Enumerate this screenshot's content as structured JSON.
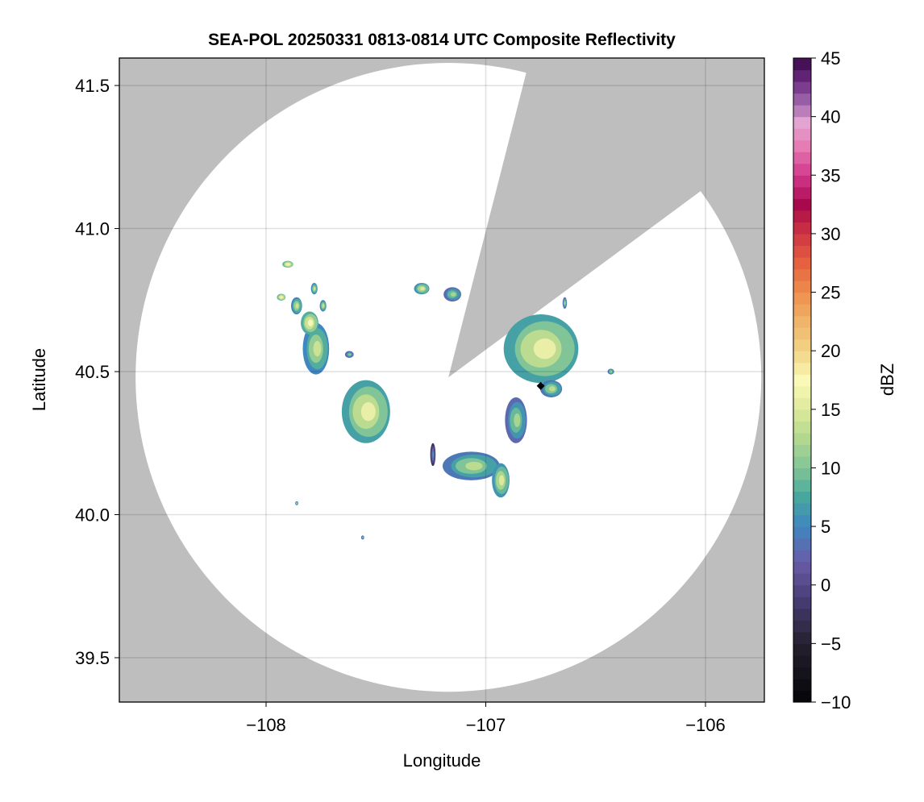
{
  "chart_data": {
    "type": "heatmap",
    "title": "SEA-POL 20250331 0813-0814 UTC Composite Reflectivity",
    "xlabel": "Longitude",
    "ylabel": "Latitude",
    "xlim": [
      -108.668,
      -105.732
    ],
    "ylim": [
      39.345,
      41.596
    ],
    "xticks": [
      -108,
      -107,
      -106
    ],
    "xtick_labels": [
      "−108",
      "−107",
      "−106"
    ],
    "yticks": [
      39.5,
      40.0,
      40.5,
      41.0,
      41.5
    ],
    "ytick_labels": [
      "39.5",
      "40.0",
      "40.5",
      "41.0",
      "41.5"
    ],
    "grid": true,
    "background_color": "#bebebe",
    "radar": {
      "center": [
        -107.17,
        40.48
      ],
      "range_deg_lon": 1.424,
      "range_deg_lat": 1.099,
      "blocked_sector_azimuth_deg": [
        14.4,
        53.7
      ]
    },
    "marker": {
      "lon": -106.75,
      "lat": 40.45,
      "shape": "diamond",
      "color": "#000000"
    },
    "colorbar": {
      "label": "dBZ",
      "range": [
        -10,
        45
      ],
      "ticks": [
        -10,
        -5,
        0,
        5,
        10,
        15,
        20,
        25,
        30,
        35,
        40,
        45
      ],
      "tick_labels": [
        "−10",
        "−5",
        "0",
        "5",
        "10",
        "15",
        "20",
        "25",
        "30",
        "35",
        "40",
        "45"
      ],
      "stops": [
        [
          -10,
          "#050508"
        ],
        [
          -5,
          "#25202f"
        ],
        [
          -1,
          "#4a3f78"
        ],
        [
          2,
          "#6a5aa8"
        ],
        [
          5,
          "#3f87c0"
        ],
        [
          7.5,
          "#47a79e"
        ],
        [
          10,
          "#80c497"
        ],
        [
          12.5,
          "#b1d88e"
        ],
        [
          15,
          "#dde99a"
        ],
        [
          17.5,
          "#fbf9b8"
        ],
        [
          20,
          "#f1d585"
        ],
        [
          22.5,
          "#f0b46a"
        ],
        [
          25,
          "#ed8e4c"
        ],
        [
          27.5,
          "#e5613f"
        ],
        [
          30,
          "#cf3543"
        ],
        [
          32.5,
          "#a8084c"
        ],
        [
          35,
          "#d2388c"
        ],
        [
          37.5,
          "#e57cb3"
        ],
        [
          39.5,
          "#e3a4d2"
        ],
        [
          41,
          "#a56db0"
        ],
        [
          43,
          "#6e2d82"
        ],
        [
          45,
          "#3a0848"
        ]
      ]
    },
    "echoes": [
      {
        "lon": -107.54,
        "lat": 40.36,
        "rx": 0.11,
        "ry": 0.11,
        "dbz": 13
      },
      {
        "lon": -107.77,
        "lat": 40.58,
        "rx": 0.06,
        "ry": 0.09,
        "dbz": 11
      },
      {
        "lon": -107.8,
        "lat": 40.67,
        "rx": 0.04,
        "ry": 0.04,
        "dbz": 14
      },
      {
        "lon": -107.9,
        "lat": 40.875,
        "rx": 0.025,
        "ry": 0.012,
        "dbz": 15
      },
      {
        "lon": -107.93,
        "lat": 40.76,
        "rx": 0.02,
        "ry": 0.012,
        "dbz": 15
      },
      {
        "lon": -107.86,
        "lat": 40.73,
        "rx": 0.025,
        "ry": 0.03,
        "dbz": 11
      },
      {
        "lon": -107.78,
        "lat": 40.79,
        "rx": 0.015,
        "ry": 0.02,
        "dbz": 11
      },
      {
        "lon": -107.74,
        "lat": 40.73,
        "rx": 0.015,
        "ry": 0.02,
        "dbz": 11
      },
      {
        "lon": -107.29,
        "lat": 40.79,
        "rx": 0.035,
        "ry": 0.02,
        "dbz": 12
      },
      {
        "lon": -107.15,
        "lat": 40.77,
        "rx": 0.04,
        "ry": 0.025,
        "dbz": 9
      },
      {
        "lon": -106.74,
        "lat": 40.58,
        "rx": 0.17,
        "ry": 0.12,
        "dbz": 13
      },
      {
        "lon": -106.7,
        "lat": 40.44,
        "rx": 0.05,
        "ry": 0.03,
        "dbz": 10
      },
      {
        "lon": -106.86,
        "lat": 40.33,
        "rx": 0.05,
        "ry": 0.08,
        "dbz": 9
      },
      {
        "lon": -107.06,
        "lat": 40.17,
        "rx": 0.13,
        "ry": 0.05,
        "dbz": 10
      },
      {
        "lon": -106.93,
        "lat": 40.12,
        "rx": 0.04,
        "ry": 0.06,
        "dbz": 12
      },
      {
        "lon": -107.24,
        "lat": 40.21,
        "rx": 0.012,
        "ry": 0.04,
        "dbz": 3
      },
      {
        "lon": -107.62,
        "lat": 40.56,
        "rx": 0.02,
        "ry": 0.012,
        "dbz": 8
      },
      {
        "lon": -106.43,
        "lat": 40.5,
        "rx": 0.015,
        "ry": 0.01,
        "dbz": 10
      },
      {
        "lon": -106.64,
        "lat": 40.74,
        "rx": 0.01,
        "ry": 0.02,
        "dbz": 9
      },
      {
        "lon": -107.86,
        "lat": 40.04,
        "rx": 0.007,
        "ry": 0.007,
        "dbz": 10
      },
      {
        "lon": -107.56,
        "lat": 39.92,
        "rx": 0.007,
        "ry": 0.007,
        "dbz": 8
      }
    ]
  }
}
